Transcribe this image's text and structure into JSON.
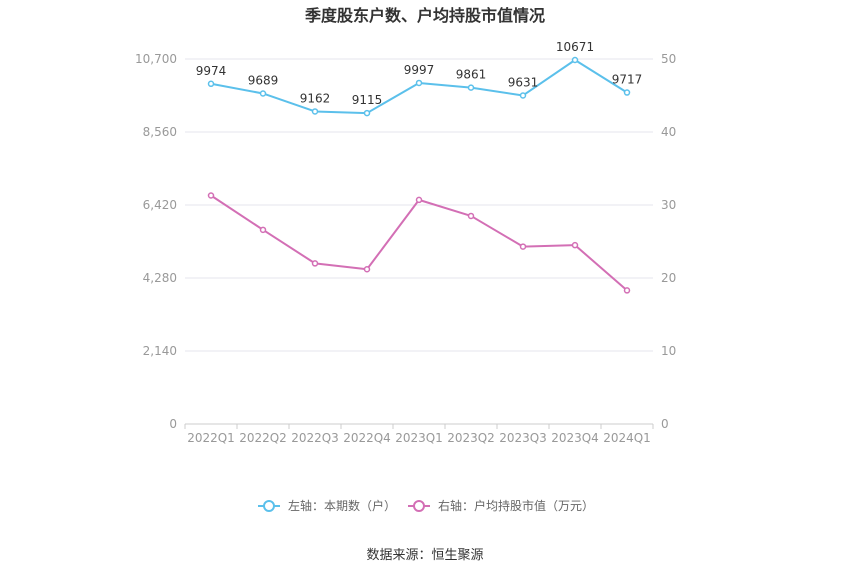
{
  "chart_data": {
    "type": "line",
    "title": "季度股东户数、户均持股市值情况",
    "categories": [
      "2022Q1",
      "2022Q2",
      "2022Q3",
      "2022Q4",
      "2023Q1",
      "2023Q2",
      "2023Q3",
      "2023Q4",
      "2024Q1"
    ],
    "left_axis": {
      "ticks": [
        "0",
        "2,140",
        "4,280",
        "6,420",
        "8,560",
        "10,700"
      ],
      "ylim": [
        0,
        10700
      ]
    },
    "right_axis": {
      "ticks": [
        "0",
        "10",
        "20",
        "30",
        "40",
        "50"
      ],
      "ylim": [
        0,
        50
      ]
    },
    "series": [
      {
        "name": "左轴：本期数（户）",
        "axis": "left",
        "color": "#5bc0eb",
        "values": [
          9974,
          9689,
          9162,
          9115,
          9997,
          9861,
          9631,
          10671,
          9717
        ],
        "labels": [
          "9974",
          "9689",
          "9162",
          "9115",
          "9997",
          "9861",
          "9631",
          "10671",
          "9717"
        ]
      },
      {
        "name": "右轴：户均持股市值（万元）",
        "axis": "right",
        "color": "#d36fb5",
        "values": [
          31.3,
          26.6,
          22.0,
          21.2,
          30.7,
          28.5,
          24.3,
          24.5,
          18.3
        ]
      }
    ],
    "legend": "bottom-center",
    "grid": true
  },
  "source": "数据来源：恒生聚源"
}
